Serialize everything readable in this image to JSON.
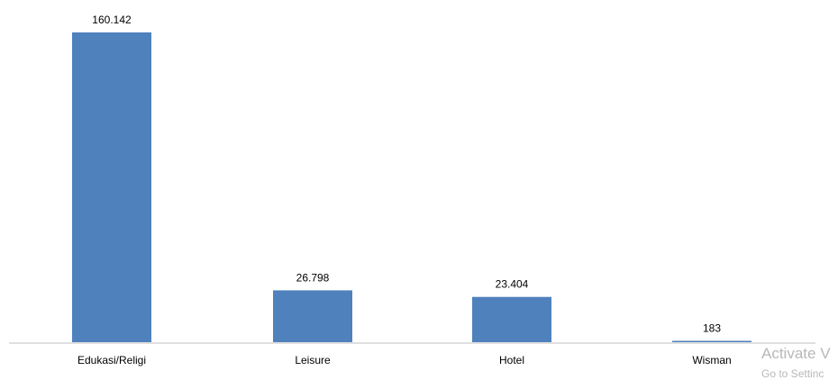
{
  "chart_data": {
    "type": "bar",
    "categories": [
      "Edukasi/Religi",
      "Leisure",
      "Hotel",
      "Wisman"
    ],
    "values": [
      160142,
      26798,
      23404,
      183
    ],
    "value_labels": [
      "160.142",
      "26.798",
      "23.404",
      "183"
    ],
    "title": "",
    "xlabel": "",
    "ylabel": "",
    "ylim": [
      0,
      160142
    ],
    "grid": false,
    "legend": "none",
    "bar_color": "#4f81bd"
  },
  "overlay": {
    "watermark_line1": "Activate V",
    "watermark_line2": "Go to Settinc"
  },
  "colors": {
    "axis": "#bfbfbf",
    "label_text": "#000000"
  }
}
